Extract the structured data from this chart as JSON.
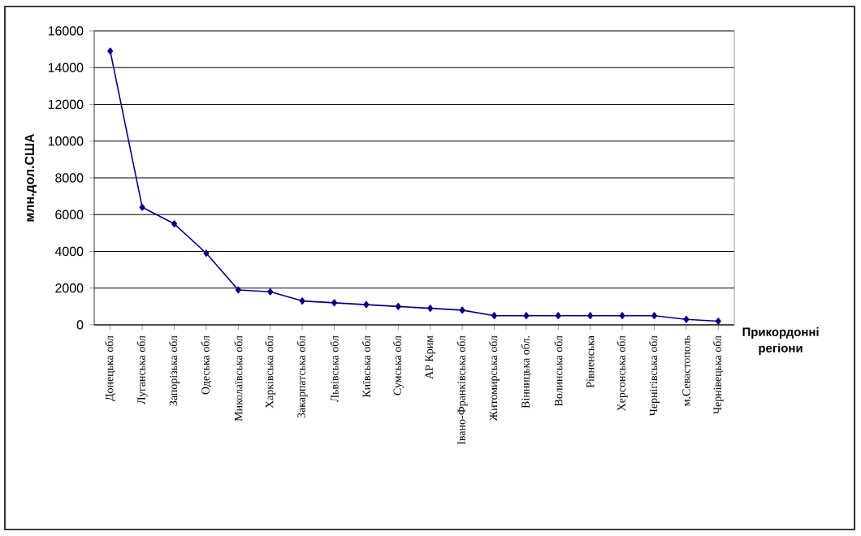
{
  "chart_data": {
    "type": "line",
    "categories": [
      "Донецька обл",
      "Луганська обл",
      "Запорізька обл",
      "Одеська обл",
      "Миколаївська обл",
      "Харківська обл",
      "Закарпатська обл",
      "Львівська обл",
      "Київська обл",
      "Сумська обл",
      "АР Крим",
      "Івано-Франківська обл",
      "Житомирська обл",
      "Вінницька обл.",
      "Волинська обл",
      "Рівненська",
      "Херсонська обл",
      "Чернігівська обл",
      "м.Севастополь",
      "Чернівецька обл"
    ],
    "series": [
      {
        "color": "#000080",
        "values": [
          14900,
          6400,
          5500,
          3900,
          1900,
          1800,
          1300,
          1200,
          1100,
          1000,
          900,
          800,
          500,
          500,
          500,
          500,
          500,
          500,
          300,
          200
        ]
      }
    ],
    "xlabel": "Прикордонні регіони",
    "ylabel": "млн.дол.США",
    "ylim": [
      0,
      16000
    ],
    "yticks": [
      0,
      2000,
      4000,
      6000,
      8000,
      10000,
      12000,
      14000,
      16000
    ],
    "grid": "y",
    "marker": "diamond",
    "line_style": "solid"
  }
}
